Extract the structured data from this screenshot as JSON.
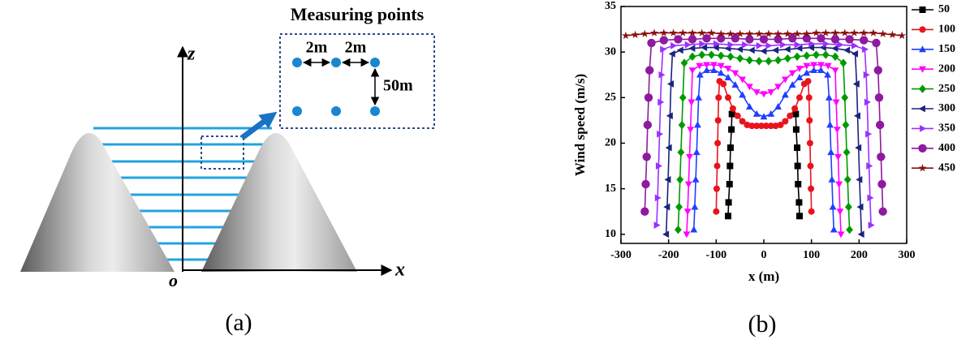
{
  "diagram": {
    "title": "Measuring points",
    "spacing_labels": [
      "2m",
      "2m"
    ],
    "height_label": "50m",
    "axis_labels": {
      "z": "z",
      "x": "x",
      "origin": "o"
    },
    "panel_label": "(a)"
  },
  "chart_data": {
    "type": "line",
    "panel_label": "(b)",
    "xlabel": "x (m)",
    "ylabel": "Wind speed (m/s)",
    "xlim": [
      -300,
      300
    ],
    "ylim": [
      9,
      35
    ],
    "xticks": [
      -300,
      -200,
      -100,
      0,
      100,
      200,
      300
    ],
    "yticks": [
      10,
      15,
      20,
      25,
      30,
      35
    ],
    "legend": "right",
    "series": [
      {
        "name": "50",
        "color": "#000000",
        "marker": "square",
        "x": [
          -75,
          -74,
          -72,
          -71,
          -70,
          -68,
          -67,
          null,
          67,
          68,
          70,
          71,
          72,
          74,
          75
        ],
        "values": [
          12,
          13.5,
          15.5,
          17.5,
          19.5,
          21.5,
          23.2,
          null,
          23.2,
          21.5,
          19.5,
          17.5,
          15.5,
          13.5,
          12
        ]
      },
      {
        "name": "100",
        "color": "#e8141c",
        "marker": "circle",
        "x": [
          -100,
          -99,
          -98,
          -97,
          -96,
          -95,
          -93,
          -85,
          -75,
          -65,
          -55,
          -45,
          -35,
          -25,
          -15,
          -5,
          5,
          15,
          25,
          35,
          45,
          55,
          65,
          75,
          85,
          93,
          95,
          96,
          97,
          98,
          99,
          100
        ],
        "values": [
          12.5,
          15,
          17.5,
          20,
          22.5,
          25,
          26.8,
          26.5,
          25,
          23.8,
          23,
          22.4,
          22,
          21.9,
          21.9,
          21.9,
          21.9,
          21.9,
          21.9,
          22,
          22.4,
          23,
          23.8,
          25,
          26.5,
          26.8,
          25,
          22.5,
          20,
          17.5,
          15,
          12.5
        ]
      },
      {
        "name": "150",
        "color": "#1f3fff",
        "marker": "triangle-up",
        "x": [
          -147,
          -145,
          -143,
          -141,
          -139,
          -137,
          -134,
          -120,
          -105,
          -90,
          -75,
          -60,
          -45,
          -30,
          -15,
          0,
          15,
          30,
          45,
          60,
          75,
          90,
          105,
          120,
          134,
          137,
          139,
          141,
          143,
          145,
          147
        ],
        "values": [
          10.5,
          13,
          16,
          19,
          22,
          25,
          27.5,
          28,
          28,
          27.7,
          27.2,
          26.4,
          25.3,
          24,
          23.2,
          22.9,
          23.2,
          24,
          25.3,
          26.4,
          27.2,
          27.7,
          28,
          28,
          27.5,
          25,
          22,
          19,
          16,
          13,
          10.5
        ]
      },
      {
        "name": "200",
        "color": "#ff00ff",
        "marker": "triangle-down",
        "x": [
          -162,
          -160,
          -158,
          -156,
          -154,
          -152,
          -150,
          -135,
          -120,
          -105,
          -90,
          -75,
          -60,
          -45,
          -30,
          -15,
          0,
          15,
          30,
          45,
          60,
          75,
          90,
          105,
          120,
          135,
          150,
          152,
          154,
          156,
          158,
          160,
          162
        ],
        "values": [
          10,
          12.5,
          15.5,
          18.5,
          21.5,
          24.5,
          28,
          28.5,
          28.6,
          28.6,
          28.5,
          28.2,
          27.7,
          27,
          26.2,
          25.6,
          25.4,
          25.6,
          26.2,
          27,
          27.7,
          28.2,
          28.5,
          28.6,
          28.6,
          28.5,
          28,
          24.5,
          21.5,
          18.5,
          15.5,
          12.5,
          10
        ]
      },
      {
        "name": "250",
        "color": "#009a00",
        "marker": "diamond",
        "x": [
          -180,
          -178,
          -176,
          -174,
          -172,
          -170,
          -167,
          -150,
          -130,
          -110,
          -90,
          -70,
          -50,
          -30,
          -10,
          10,
          30,
          50,
          70,
          90,
          110,
          130,
          150,
          167,
          170,
          172,
          174,
          176,
          178,
          180
        ],
        "values": [
          10.5,
          13,
          16,
          19,
          22,
          25,
          28.8,
          29.5,
          29.7,
          29.7,
          29.6,
          29.5,
          29.3,
          29.1,
          29,
          29,
          29.1,
          29.3,
          29.5,
          29.6,
          29.7,
          29.7,
          29.5,
          28.8,
          25,
          22,
          19,
          16,
          13,
          10.5
        ]
      },
      {
        "name": "300",
        "color": "#1a237e",
        "marker": "triangle-left",
        "x": [
          -205,
          -203,
          -201,
          -199,
          -197,
          -195,
          -192,
          -175,
          -150,
          -125,
          -100,
          -75,
          -50,
          -25,
          0,
          25,
          50,
          75,
          100,
          125,
          150,
          175,
          192,
          195,
          197,
          199,
          201,
          203,
          205
        ],
        "values": [
          10,
          13,
          16,
          19.5,
          23,
          26.5,
          29.8,
          30.2,
          30.4,
          30.5,
          30.5,
          30.4,
          30.3,
          30.2,
          30.1,
          30.2,
          30.3,
          30.4,
          30.5,
          30.5,
          30.4,
          30.2,
          29.8,
          26.5,
          23,
          19.5,
          16,
          13,
          10
        ]
      },
      {
        "name": "350",
        "color": "#9b30ff",
        "marker": "triangle-right",
        "x": [
          -225,
          -223,
          -221,
          -219,
          -217,
          -215,
          -212,
          -190,
          -160,
          -130,
          -100,
          -70,
          -40,
          -10,
          10,
          40,
          70,
          100,
          130,
          160,
          190,
          212,
          215,
          217,
          219,
          221,
          223,
          225
        ],
        "values": [
          11,
          14,
          17.5,
          21,
          24.5,
          27.5,
          30.3,
          30.7,
          30.8,
          30.9,
          30.9,
          30.8,
          30.8,
          30.7,
          30.7,
          30.8,
          30.8,
          30.9,
          30.9,
          30.8,
          30.7,
          30.3,
          27.5,
          24.5,
          21,
          17.5,
          14,
          11
        ]
      },
      {
        "name": "400",
        "color": "#8e1a9e",
        "marker": "big-circle",
        "x": [
          -250,
          -248,
          -246,
          -244,
          -242,
          -240,
          -236,
          -210,
          -180,
          -150,
          -120,
          -90,
          -60,
          -30,
          0,
          30,
          60,
          90,
          120,
          150,
          180,
          210,
          236,
          240,
          242,
          244,
          246,
          248,
          250
        ],
        "values": [
          12.5,
          15.5,
          18.5,
          22,
          25,
          28,
          31,
          31.3,
          31.4,
          31.4,
          31.5,
          31.5,
          31.5,
          31.4,
          31.4,
          31.4,
          31.5,
          31.5,
          31.5,
          31.4,
          31.4,
          31.3,
          31,
          28,
          25,
          22,
          18.5,
          15.5,
          12.5
        ]
      },
      {
        "name": "450",
        "color": "#8b1010",
        "marker": "star",
        "x": [
          -290,
          -270,
          -250,
          -230,
          -210,
          -190,
          -170,
          -150,
          -130,
          -110,
          -90,
          -70,
          -50,
          -30,
          -10,
          10,
          30,
          50,
          70,
          90,
          110,
          130,
          150,
          170,
          190,
          210,
          230,
          250,
          270,
          290
        ],
        "values": [
          31.8,
          31.9,
          32,
          32.1,
          32.1,
          32.1,
          32.1,
          32.1,
          32.1,
          32.1,
          32,
          32,
          32,
          32,
          32,
          32,
          32,
          32,
          32,
          32,
          32.1,
          32.1,
          32.1,
          32.1,
          32.1,
          32.1,
          32.1,
          32,
          31.9,
          31.8
        ]
      }
    ]
  }
}
